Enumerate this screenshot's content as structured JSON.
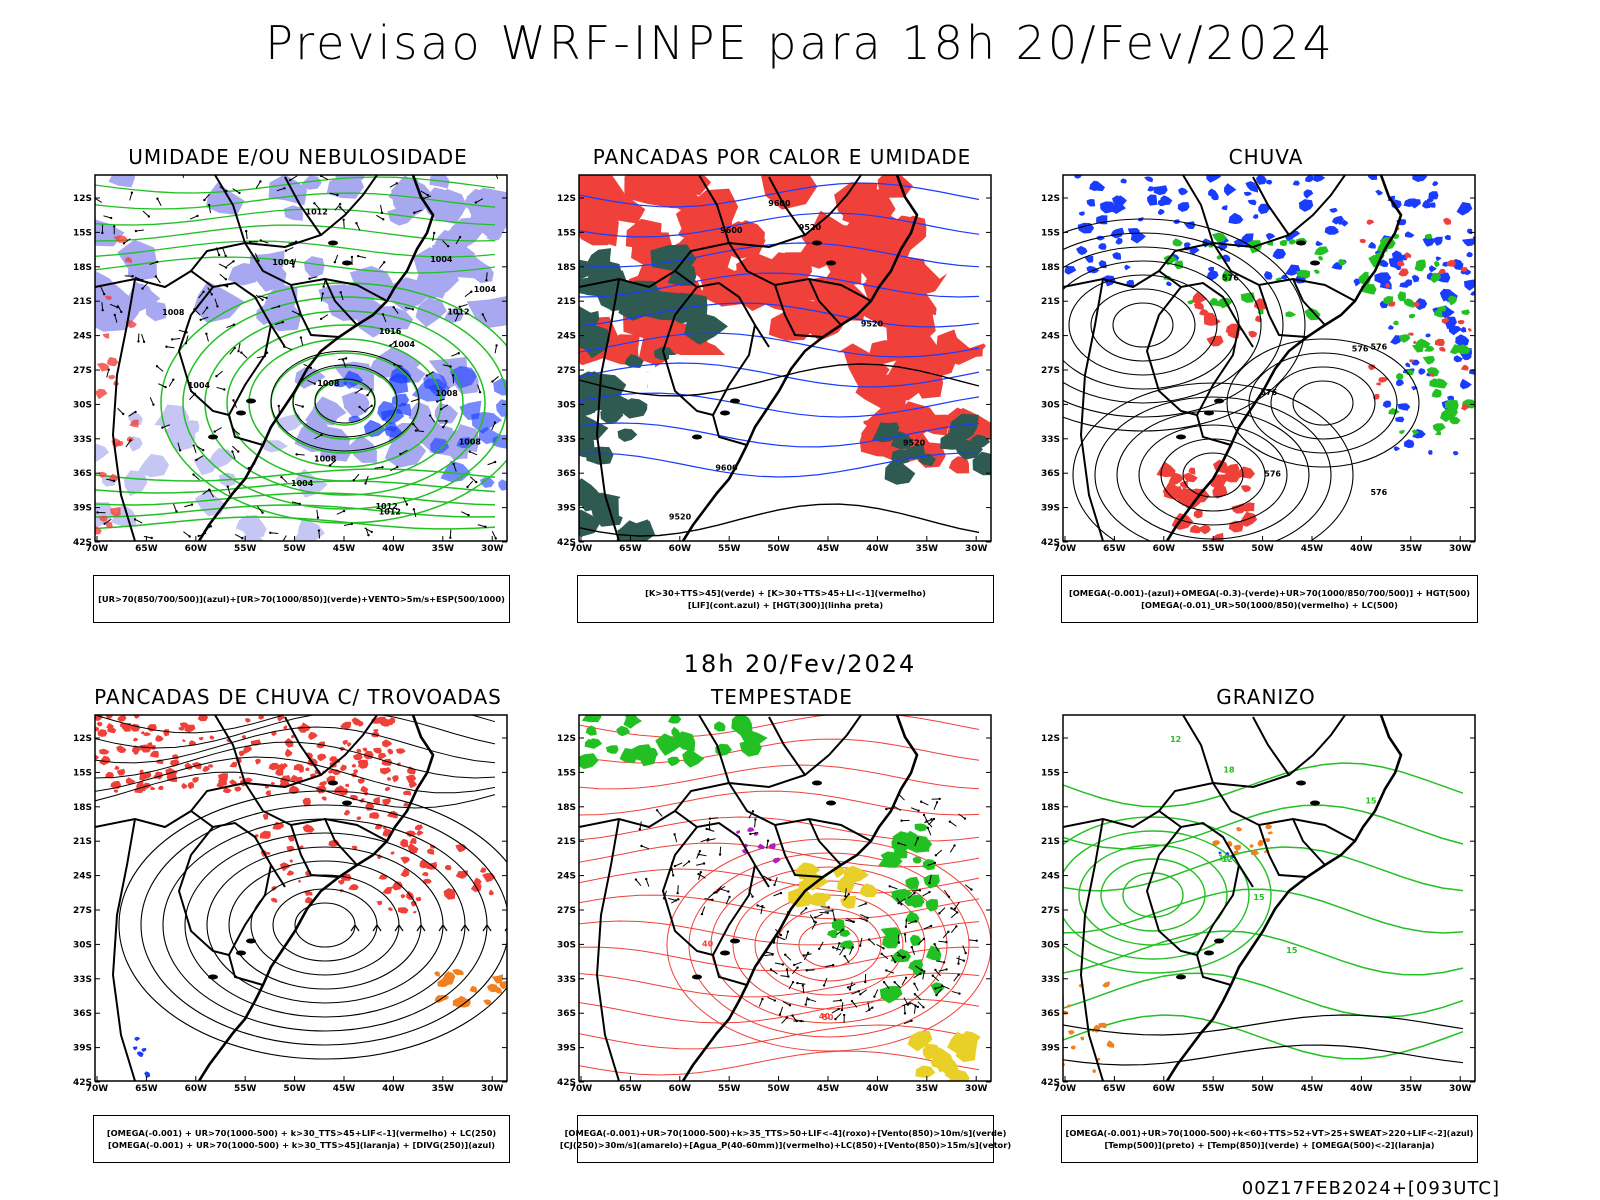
{
  "title": "Previsao WRF-INPE  para 18h 20/Fev/2024",
  "mid_title": "18h 20/Fev/2024",
  "footer": "00Z17FEB2024+[093UTC]",
  "lat_labels": [
    "12S",
    "15S",
    "18S",
    "21S",
    "24S",
    "27S",
    "30S",
    "33S",
    "36S",
    "39S",
    "42S"
  ],
  "lon_labels": [
    "70W",
    "65W",
    "60W",
    "55W",
    "50W",
    "45W",
    "40W",
    "35W",
    "30W"
  ],
  "colors": {
    "red": "#f0403a",
    "green": "#22c022",
    "blue": "#1a3cff",
    "lavender": "#a8a8f0",
    "teal": "#2e5a52",
    "orange": "#f08020",
    "yellow": "#e8d028",
    "magenta": "#b020c0"
  },
  "panels": [
    {
      "title": "UMIDADE E/OU NEBULOSIDADE",
      "legend": [
        "[UR>70(850/700/500)](azul)+[UR>70(1000/850)](verde)+VENTO>5m/s+ESP(500/1000)"
      ],
      "contour_labels": [
        "1008",
        "1008",
        "1004",
        "1012",
        "1004",
        "1012",
        "1004",
        "1004",
        "1008",
        "1004",
        "1012",
        "1016",
        "1004",
        "1012",
        "1008",
        "1008"
      ]
    },
    {
      "title": "PANCADAS POR CALOR E UMIDADE",
      "legend": [
        "[K>30+TTS>45](verde) + [K>30+TTS>45+LI<-1](vermelho)",
        "[LIF](cont.azul) + [HGT(300)](linha preta)"
      ],
      "contour_labels": [
        "9600",
        "9520",
        "9600",
        "9520",
        "9600",
        "9520",
        "9520"
      ]
    },
    {
      "title": "CHUVA",
      "legend": [
        "[OMEGA(-0.001)-(azul)+OMEGA(-0.3)-(verde)+UR>70(1000/850/700/500)] + HGT(500)",
        "[OMEGA(-0.01)_UR>50(1000/850)(vermelho) + LC(500)"
      ],
      "contour_labels": [
        "576",
        "576",
        "576",
        "576",
        "576",
        "576"
      ]
    },
    {
      "title": "PANCADAS DE CHUVA C/ TROVOADAS",
      "legend": [
        "[OMEGA(-0.001) + UR>70(1000-500) + k>30_TTS>45+LIF<-1](vermelho) + LC(250)",
        "[OMEGA(-0.001) + UR>70(1000-500) + k>30_TTS>45](laranja) + [DIVG(250)](azul)"
      ],
      "contour_labels": []
    },
    {
      "title": "TEMPESTADE",
      "legend": [
        "[OMEGA(-0.001)+UR>70(1000-500)+k>35_TTS>50+LIF<-4](roxo)+[Vento(850)>10m/s](verde)",
        "[CJ(250)>30m/s](amarelo)+[Agua_P(40-60mm)](vermelho)+LC(850)+[Vento(850)>15m/s](vetor)"
      ],
      "contour_labels": [
        "50",
        "40",
        "40"
      ]
    },
    {
      "title": "GRANIZO",
      "legend": [
        "[OMEGA(-0.001)+UR>70(1000-500)+k<60+TTS>52+VT>25+SWEAT>220+LIF<-2](azul)",
        "[Temp(500)](preto) + [Temp(850)](verde) + [OMEGA(500)<-2](laranja)"
      ],
      "contour_labels": [
        "15",
        "15",
        "18",
        "12",
        "12",
        "15",
        "18"
      ]
    }
  ]
}
